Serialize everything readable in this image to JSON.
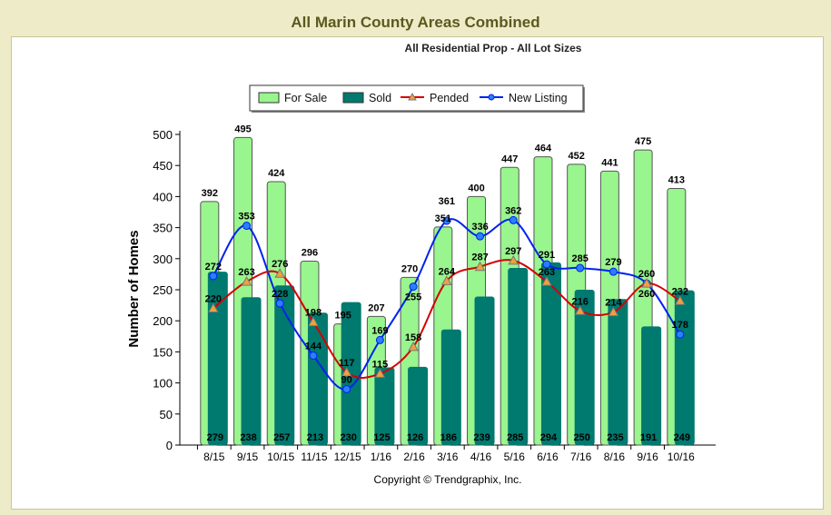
{
  "page_title": "All Marin County Areas Combined",
  "chart_data": {
    "type": "bar",
    "title": "All Residential Prop - All Lot Sizes",
    "ylabel": "Number of Homes",
    "xlabel": "",
    "ylim": [
      0,
      500
    ],
    "yticks": [
      0,
      50,
      100,
      150,
      200,
      250,
      300,
      350,
      400,
      450,
      500
    ],
    "categories": [
      "8/15",
      "9/15",
      "10/15",
      "11/15",
      "12/15",
      "1/16",
      "2/16",
      "3/16",
      "4/16",
      "5/16",
      "6/16",
      "7/16",
      "8/16",
      "9/16",
      "10/16"
    ],
    "legend_position": "top",
    "grid": false,
    "series": [
      {
        "name": "For Sale",
        "kind": "bar",
        "color": "#99f58e",
        "values": [
          392,
          495,
          424,
          296,
          195,
          207,
          270,
          351,
          400,
          447,
          464,
          452,
          441,
          475,
          413
        ]
      },
      {
        "name": "Sold",
        "kind": "bar",
        "color": "#00796f",
        "values": [
          279,
          238,
          257,
          213,
          230,
          125,
          126,
          186,
          239,
          285,
          294,
          250,
          235,
          191,
          249
        ]
      },
      {
        "name": "Pended",
        "kind": "line",
        "color": "#d40000",
        "marker": "triangle",
        "values": [
          220,
          263,
          276,
          198,
          117,
          115,
          158,
          264,
          287,
          297,
          263,
          216,
          214,
          260,
          232
        ]
      },
      {
        "name": "New Listing",
        "kind": "line",
        "color": "#0022ee",
        "marker": "circle",
        "values": [
          272,
          353,
          228,
          144,
          90,
          169,
          255,
          361,
          336,
          362,
          291,
          285,
          279,
          260,
          178
        ]
      }
    ],
    "footer": "Copyright © Trendgraphix, Inc."
  }
}
